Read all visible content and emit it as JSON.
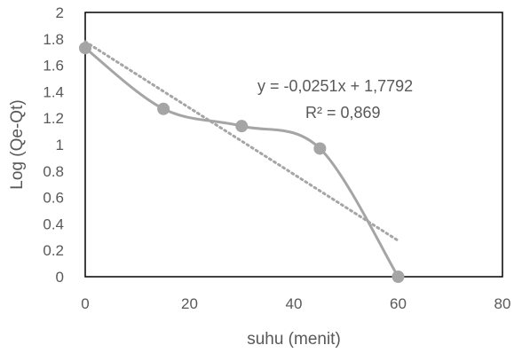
{
  "chart_data": {
    "type": "scatter",
    "title": "",
    "xlabel": "suhu (menit)",
    "ylabel": "Log (Qe-Qt)",
    "xlim": [
      0,
      80
    ],
    "ylim": [
      0,
      2
    ],
    "xticks": [
      "0",
      "20",
      "40",
      "60",
      "80"
    ],
    "yticks": [
      "0",
      "0.2",
      "0.4",
      "0.6",
      "0.8",
      "1",
      "1.2",
      "1.4",
      "1.6",
      "1.8",
      "2"
    ],
    "grid": false,
    "legend": "none",
    "series": [
      {
        "x": [
          0,
          15,
          30,
          45,
          60
        ],
        "y": [
          1.73,
          1.27,
          1.14,
          0.97,
          0.0
        ],
        "line": "smooth",
        "color": "#a5a5a5"
      }
    ],
    "trendline": {
      "type": "linear",
      "slope": -0.0251,
      "intercept": 1.7792,
      "x_range": [
        0,
        60
      ],
      "style": "dotted",
      "color": "#a5a5a5",
      "equation_label": "y = -0,0251x + 1,7792",
      "r2_label": "R² = 0,869"
    }
  }
}
